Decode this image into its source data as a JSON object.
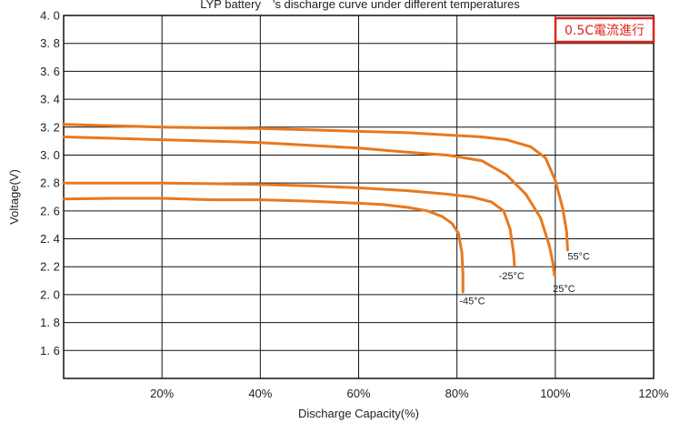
{
  "chart_data": {
    "type": "line",
    "title": "LYP battery　's discharge curve under different temperatures",
    "xlabel": "Discharge Capacity(%)",
    "ylabel": "Voltage(V)",
    "xlim": [
      0,
      120
    ],
    "ylim": [
      1.4,
      4.0
    ],
    "x_ticks": [
      20,
      40,
      60,
      80,
      100,
      120
    ],
    "x_tick_labels": [
      "20%",
      "40%",
      "60%",
      "80%",
      "100%",
      "120%"
    ],
    "y_ticks": [
      1.6,
      1.8,
      2.0,
      2.2,
      2.4,
      2.6,
      2.8,
      3.0,
      3.2,
      3.4,
      3.6,
      3.8,
      4.0
    ],
    "y_tick_labels": [
      "1. 6",
      "1. 8",
      "2. 0",
      "2. 2",
      "2. 4",
      "2. 6",
      "2. 8",
      "3. 0",
      "3. 2",
      "3. 4",
      "3. 6",
      "3. 8",
      "4. 0"
    ],
    "grid": true,
    "series_color": "#e8781e",
    "badge": {
      "text": "0.5C電流進行",
      "color": "#d9261c"
    },
    "series": [
      {
        "label": "55°C",
        "points": [
          [
            0,
            3.22
          ],
          [
            10,
            3.21
          ],
          [
            20,
            3.2
          ],
          [
            30,
            3.195
          ],
          [
            40,
            3.19
          ],
          [
            50,
            3.18
          ],
          [
            60,
            3.17
          ],
          [
            70,
            3.16
          ],
          [
            80,
            3.14
          ],
          [
            85,
            3.13
          ],
          [
            90,
            3.11
          ],
          [
            95,
            3.06
          ],
          [
            98,
            2.98
          ],
          [
            100,
            2.82
          ],
          [
            101.5,
            2.62
          ],
          [
            102.3,
            2.45
          ],
          [
            102.5,
            2.32
          ]
        ]
      },
      {
        "label": "25°C",
        "points": [
          [
            0,
            3.13
          ],
          [
            10,
            3.12
          ],
          [
            20,
            3.11
          ],
          [
            30,
            3.1
          ],
          [
            40,
            3.09
          ],
          [
            50,
            3.07
          ],
          [
            60,
            3.05
          ],
          [
            70,
            3.02
          ],
          [
            78,
            3.0
          ],
          [
            85,
            2.96
          ],
          [
            90,
            2.86
          ],
          [
            94,
            2.72
          ],
          [
            97,
            2.55
          ],
          [
            98.8,
            2.35
          ],
          [
            99.5,
            2.23
          ],
          [
            99.8,
            2.14
          ]
        ]
      },
      {
        "label": "-25°C",
        "points": [
          [
            0,
            2.8
          ],
          [
            10,
            2.8
          ],
          [
            20,
            2.8
          ],
          [
            30,
            2.795
          ],
          [
            40,
            2.79
          ],
          [
            50,
            2.78
          ],
          [
            60,
            2.765
          ],
          [
            70,
            2.745
          ],
          [
            78,
            2.72
          ],
          [
            83,
            2.7
          ],
          [
            87,
            2.665
          ],
          [
            89.5,
            2.6
          ],
          [
            90.8,
            2.47
          ],
          [
            91.5,
            2.3
          ],
          [
            91.7,
            2.21
          ]
        ]
      },
      {
        "label": "-45°C",
        "points": [
          [
            0,
            2.685
          ],
          [
            10,
            2.69
          ],
          [
            20,
            2.69
          ],
          [
            30,
            2.68
          ],
          [
            40,
            2.68
          ],
          [
            50,
            2.67
          ],
          [
            60,
            2.655
          ],
          [
            65,
            2.645
          ],
          [
            70,
            2.625
          ],
          [
            74,
            2.6
          ],
          [
            77,
            2.56
          ],
          [
            79,
            2.51
          ],
          [
            80.3,
            2.44
          ],
          [
            81,
            2.3
          ],
          [
            81.2,
            2.15
          ],
          [
            81.2,
            2.02
          ]
        ]
      }
    ],
    "curve_labels": [
      {
        "text": "55°C",
        "x": 102.5,
        "y": 2.25
      },
      {
        "text": "-25°C",
        "x": 88.5,
        "y": 2.11
      },
      {
        "text": "25°C",
        "x": 99.5,
        "y": 2.02
      },
      {
        "text": "-45°C",
        "x": 80.5,
        "y": 1.93
      }
    ]
  }
}
